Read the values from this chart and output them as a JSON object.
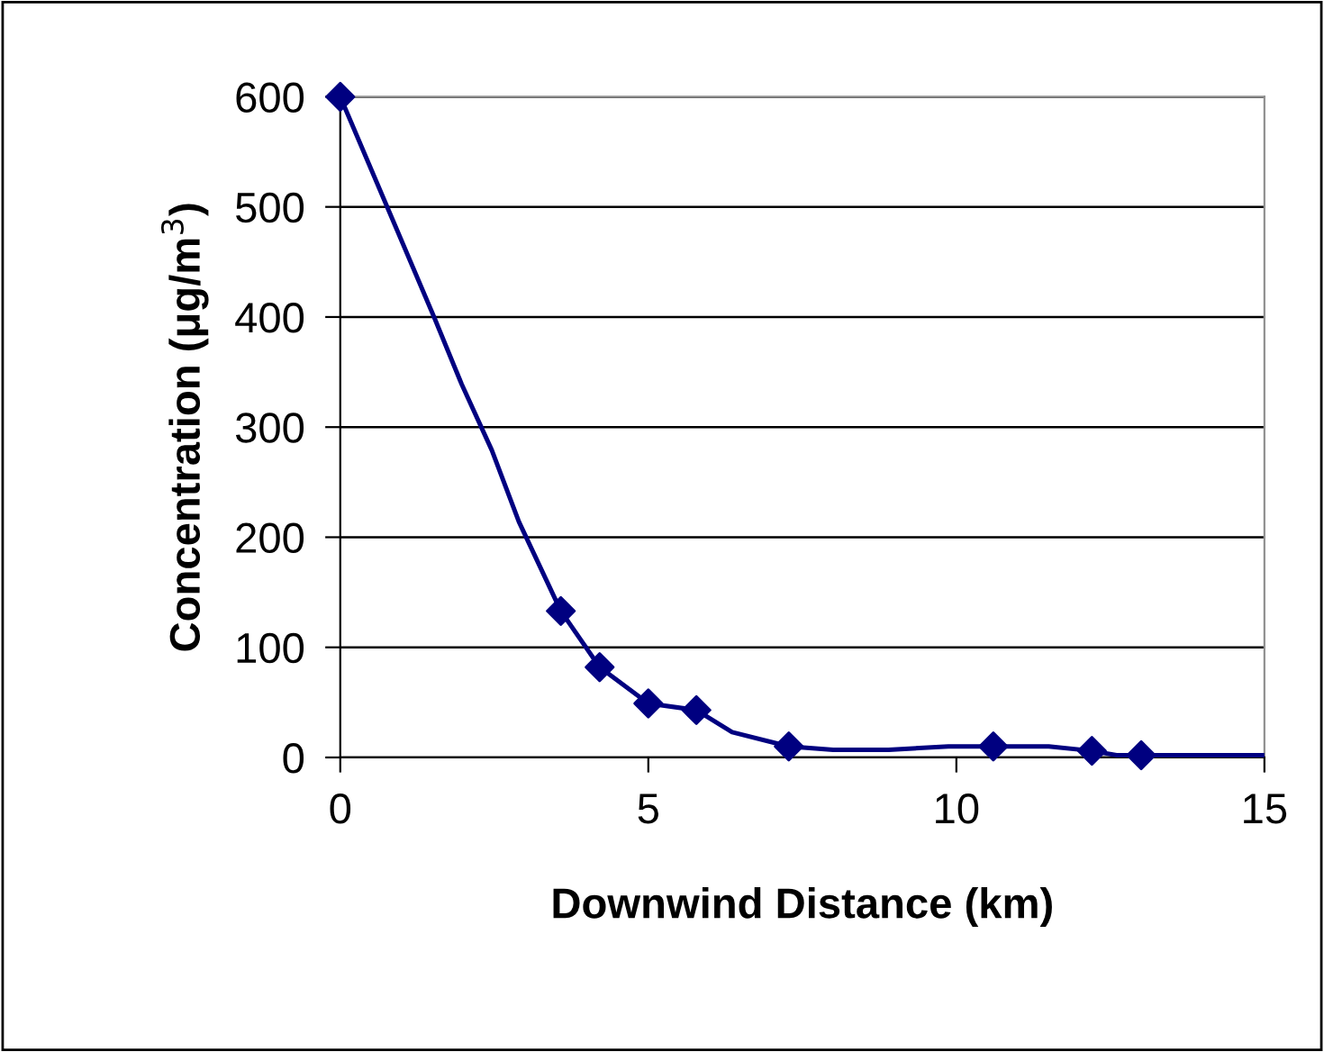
{
  "chart_data": {
    "type": "line",
    "xlabel": "Downwind Distance (km)",
    "ylabel": "Concentration (μg/m$^{3}$)",
    "xlim": [
      0,
      15
    ],
    "ylim": [
      0,
      600
    ],
    "xticks": [
      0,
      5,
      10,
      15
    ],
    "yticks": [
      0,
      100,
      200,
      300,
      400,
      500,
      600
    ],
    "grid": "y",
    "series": [
      {
        "marker": "none",
        "color": "#000080",
        "x": [
          0,
          1.53,
          1.97,
          2.46,
          2.9,
          3.58,
          4.21,
          5.0,
          5.78,
          6.36,
          7.28,
          8.0,
          8.9,
          9.87,
          10.6,
          11.5,
          12.2,
          12.6,
          13.0,
          15
        ],
        "values": [
          600,
          399,
          339,
          279,
          214,
          133,
          82,
          49,
          43,
          23,
          10,
          7,
          7,
          10,
          10,
          10,
          6,
          2,
          2,
          2
        ]
      },
      {
        "type": "scatter",
        "marker": "diamond",
        "color": "#000080",
        "x": [
          0,
          3.58,
          4.21,
          5.0,
          5.78,
          7.28,
          10.6,
          12.2,
          13.0
        ],
        "values": [
          600,
          133,
          82,
          49,
          43,
          10,
          10,
          6,
          2
        ]
      }
    ]
  }
}
